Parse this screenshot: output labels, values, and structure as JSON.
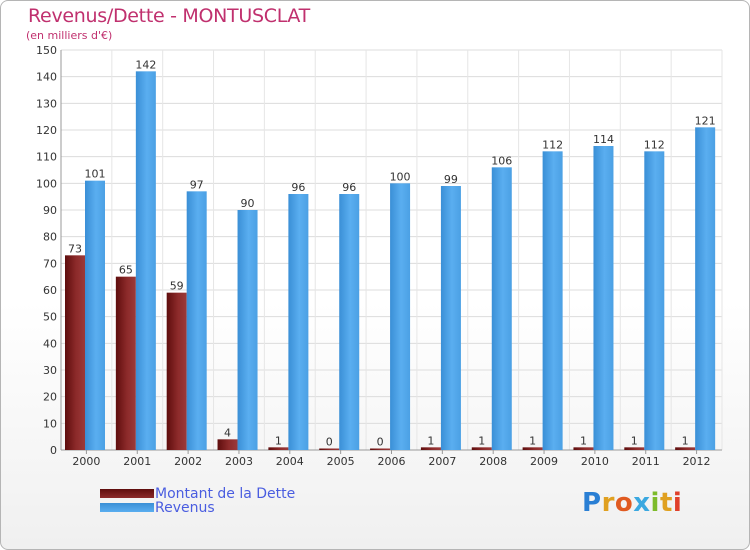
{
  "chart_data": {
    "type": "bar",
    "title": "Revenus/Dette - MONTUSCLAT",
    "subtitle": "(en milliers d'€)",
    "categories": [
      "2000",
      "2001",
      "2002",
      "2003",
      "2004",
      "2005",
      "2006",
      "2007",
      "2008",
      "2009",
      "2010",
      "2011",
      "2012"
    ],
    "series": [
      {
        "name": "Montant de la Dette",
        "color": "#7a1a1a",
        "values": [
          73,
          65,
          59,
          4,
          1,
          0,
          0,
          1,
          1,
          1,
          1,
          1,
          1
        ]
      },
      {
        "name": "Revenus",
        "color": "#4aa3e6",
        "values": [
          101,
          142,
          97,
          90,
          96,
          96,
          100,
          99,
          106,
          112,
          114,
          112,
          121
        ]
      }
    ],
    "ylim": [
      0,
      150
    ],
    "yticks": [
      0,
      10,
      20,
      30,
      40,
      50,
      60,
      70,
      80,
      90,
      100,
      110,
      120,
      130,
      140,
      150
    ],
    "grid": true,
    "legend_position": "bottom-left"
  },
  "logo": {
    "letters": [
      "P",
      "r",
      "o",
      "x",
      "i",
      "t",
      "i"
    ],
    "colors": [
      "#2a7fd4",
      "#e0a020",
      "#e05a20",
      "#3aa8e0",
      "#7dbb2a",
      "#e0a020",
      "#e0402a"
    ]
  }
}
